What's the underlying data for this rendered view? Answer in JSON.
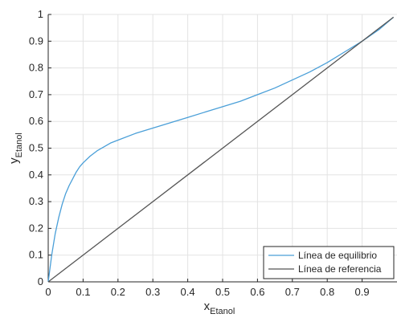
{
  "chart_data": {
    "type": "line",
    "title": "",
    "xlabel": {
      "main": "x",
      "sub": "Etanol"
    },
    "ylabel": {
      "main": "y",
      "sub": "Etanol"
    },
    "xlim": [
      0,
      1
    ],
    "ylim": [
      0,
      1
    ],
    "xticks": [
      0,
      0.1,
      0.2,
      0.3,
      0.4,
      0.5,
      0.6,
      0.7,
      0.8,
      0.9
    ],
    "xtick_labels": [
      "0",
      "0.1",
      "0.2",
      "0.3",
      "0.4",
      "0.5",
      "0.6",
      "0.7",
      "0.8",
      "0.9"
    ],
    "yticks": [
      0,
      0.1,
      0.2,
      0.3,
      0.4,
      0.5,
      0.6,
      0.7,
      0.8,
      0.9,
      1
    ],
    "ytick_labels": [
      "0",
      "0.1",
      "0.2",
      "0.3",
      "0.4",
      "0.5",
      "0.6",
      "0.7",
      "0.8",
      "0.9",
      "1"
    ],
    "grid": true,
    "legend": {
      "position": "bottom-right"
    },
    "series": [
      {
        "name": "Línea de equilibrio",
        "color": "#4a9fd8",
        "x": [
          0,
          0.005,
          0.01,
          0.02,
          0.03,
          0.04,
          0.05,
          0.06,
          0.07,
          0.08,
          0.09,
          0.1,
          0.12,
          0.14,
          0.16,
          0.18,
          0.2,
          0.25,
          0.3,
          0.35,
          0.4,
          0.45,
          0.5,
          0.55,
          0.6,
          0.65,
          0.7,
          0.75,
          0.8,
          0.85,
          0.9,
          0.95,
          0.99
        ],
        "y": [
          0,
          0.05,
          0.1,
          0.18,
          0.24,
          0.29,
          0.33,
          0.36,
          0.385,
          0.41,
          0.43,
          0.445,
          0.47,
          0.49,
          0.505,
          0.52,
          0.53,
          0.555,
          0.575,
          0.595,
          0.615,
          0.635,
          0.655,
          0.675,
          0.7,
          0.725,
          0.755,
          0.785,
          0.82,
          0.86,
          0.9,
          0.945,
          0.99
        ]
      },
      {
        "name": "Línea de referencia",
        "color": "#555555",
        "x": [
          0,
          0.99
        ],
        "y": [
          0,
          0.99
        ]
      }
    ]
  }
}
